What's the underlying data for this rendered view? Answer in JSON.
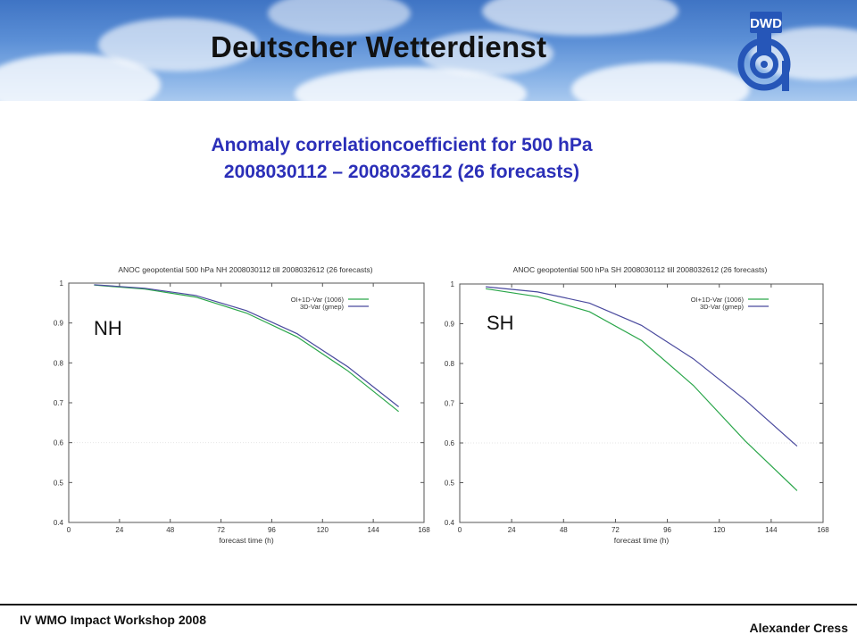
{
  "header": {
    "brand": "Deutscher Wetterdienst",
    "logo_text": "DWD"
  },
  "slide": {
    "title_line1": "Anomaly correlationcoefficient for 500 hPa",
    "title_line2": "2008030112 – 2008032612 (26 forecasts)"
  },
  "footer": {
    "left": "IV WMO Impact Workshop 2008",
    "right": "Alexander Cress"
  },
  "colors": {
    "title": "#2b2fb8",
    "oi_series": "#2aa64a",
    "var3d_series": "#4a4a9e",
    "grid": "#e6e6e6"
  },
  "chart_data": [
    {
      "type": "line",
      "title": "ANOC geopotential 500 hPa  NH  2008030112 till 2008032612  (26 forecasts)",
      "region_label": "NH",
      "xlabel": "forecast time (h)",
      "ylabel": "",
      "xlim": [
        0,
        168
      ],
      "ylim": [
        0.4,
        1
      ],
      "xticks": [
        0,
        24,
        48,
        72,
        96,
        120,
        144,
        168
      ],
      "yticks": [
        0.4,
        0.5,
        0.6,
        0.7,
        0.8,
        0.9,
        1
      ],
      "ytick_labels": [
        "0.4",
        "0.5",
        "0.6",
        "0.7",
        "0.8",
        "0.9",
        "1"
      ],
      "legend_position": "top-right",
      "series": [
        {
          "name": "OI+1D-Var (1006)",
          "color": "#2aa64a",
          "x": [
            12,
            36,
            60,
            84,
            108,
            132,
            156
          ],
          "y": [
            0.995,
            0.985,
            0.965,
            0.925,
            0.865,
            0.78,
            0.678
          ]
        },
        {
          "name": "3D-Var    (gmep)",
          "color": "#4a4a9e",
          "x": [
            12,
            36,
            60,
            84,
            108,
            132,
            156
          ],
          "y": [
            0.996,
            0.987,
            0.969,
            0.931,
            0.873,
            0.79,
            0.69
          ]
        }
      ]
    },
    {
      "type": "line",
      "title": "ANOC geopotential 500 hPa  SH  2008030112 till 2008032612  (26 forecasts)",
      "region_label": "SH",
      "xlabel": "forecast time (h)",
      "ylabel": "",
      "xlim": [
        0,
        168
      ],
      "ylim": [
        0.4,
        1
      ],
      "xticks": [
        0,
        24,
        48,
        72,
        96,
        120,
        144,
        168
      ],
      "yticks": [
        0.4,
        0.5,
        0.6,
        0.7,
        0.8,
        0.9,
        1
      ],
      "ytick_labels": [
        "0.4",
        "0.5",
        "0.6",
        "0.7",
        "0.8",
        "0.9",
        "1"
      ],
      "legend_position": "top-right",
      "series": [
        {
          "name": "OI+1D-Var (1006)",
          "color": "#2aa64a",
          "x": [
            12,
            36,
            60,
            84,
            108,
            132,
            156
          ],
          "y": [
            0.988,
            0.968,
            0.93,
            0.858,
            0.745,
            0.605,
            0.48
          ]
        },
        {
          "name": "3D-Var    (gmep)",
          "color": "#4a4a9e",
          "x": [
            12,
            36,
            60,
            84,
            108,
            132,
            156
          ],
          "y": [
            0.993,
            0.98,
            0.952,
            0.896,
            0.812,
            0.708,
            0.592
          ]
        }
      ]
    }
  ]
}
